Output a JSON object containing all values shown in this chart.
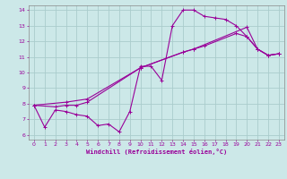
{
  "title": "",
  "xlabel": "Windchill (Refroidissement éolien,°C)",
  "ylabel": "",
  "bg_color": "#cce8e8",
  "grid_color": "#aacccc",
  "line_color": "#990099",
  "xlim": [
    -0.5,
    23.5
  ],
  "ylim": [
    5.7,
    14.3
  ],
  "xticks": [
    0,
    1,
    2,
    3,
    4,
    5,
    6,
    7,
    8,
    9,
    10,
    11,
    12,
    13,
    14,
    15,
    16,
    17,
    18,
    19,
    20,
    21,
    22,
    23
  ],
  "yticks": [
    6,
    7,
    8,
    9,
    10,
    11,
    12,
    13,
    14
  ],
  "series1": [
    [
      0,
      7.9
    ],
    [
      1,
      6.5
    ],
    [
      2,
      7.6
    ],
    [
      3,
      7.5
    ],
    [
      4,
      7.3
    ],
    [
      5,
      7.2
    ],
    [
      6,
      6.6
    ],
    [
      7,
      6.7
    ],
    [
      8,
      6.2
    ],
    [
      9,
      7.5
    ],
    [
      10,
      10.4
    ],
    [
      11,
      10.4
    ],
    [
      12,
      9.5
    ],
    [
      13,
      13.0
    ],
    [
      14,
      14.0
    ],
    [
      15,
      14.0
    ],
    [
      16,
      13.6
    ],
    [
      17,
      13.5
    ],
    [
      18,
      13.4
    ],
    [
      19,
      13.0
    ],
    [
      20,
      12.3
    ],
    [
      21,
      11.5
    ],
    [
      22,
      11.1
    ],
    [
      23,
      11.2
    ]
  ],
  "series2": [
    [
      0,
      7.9
    ],
    [
      2,
      7.8
    ],
    [
      3,
      7.9
    ],
    [
      4,
      7.9
    ],
    [
      5,
      8.1
    ],
    [
      10,
      10.3
    ],
    [
      14,
      11.3
    ],
    [
      15,
      11.5
    ],
    [
      16,
      11.7
    ],
    [
      19,
      12.5
    ],
    [
      20,
      12.3
    ],
    [
      21,
      11.5
    ],
    [
      22,
      11.1
    ],
    [
      23,
      11.2
    ]
  ],
  "series3": [
    [
      0,
      7.9
    ],
    [
      3,
      8.1
    ],
    [
      5,
      8.3
    ],
    [
      10,
      10.3
    ],
    [
      14,
      11.3
    ],
    [
      15,
      11.5
    ],
    [
      20,
      12.9
    ],
    [
      21,
      11.5
    ],
    [
      22,
      11.1
    ],
    [
      23,
      11.2
    ]
  ]
}
